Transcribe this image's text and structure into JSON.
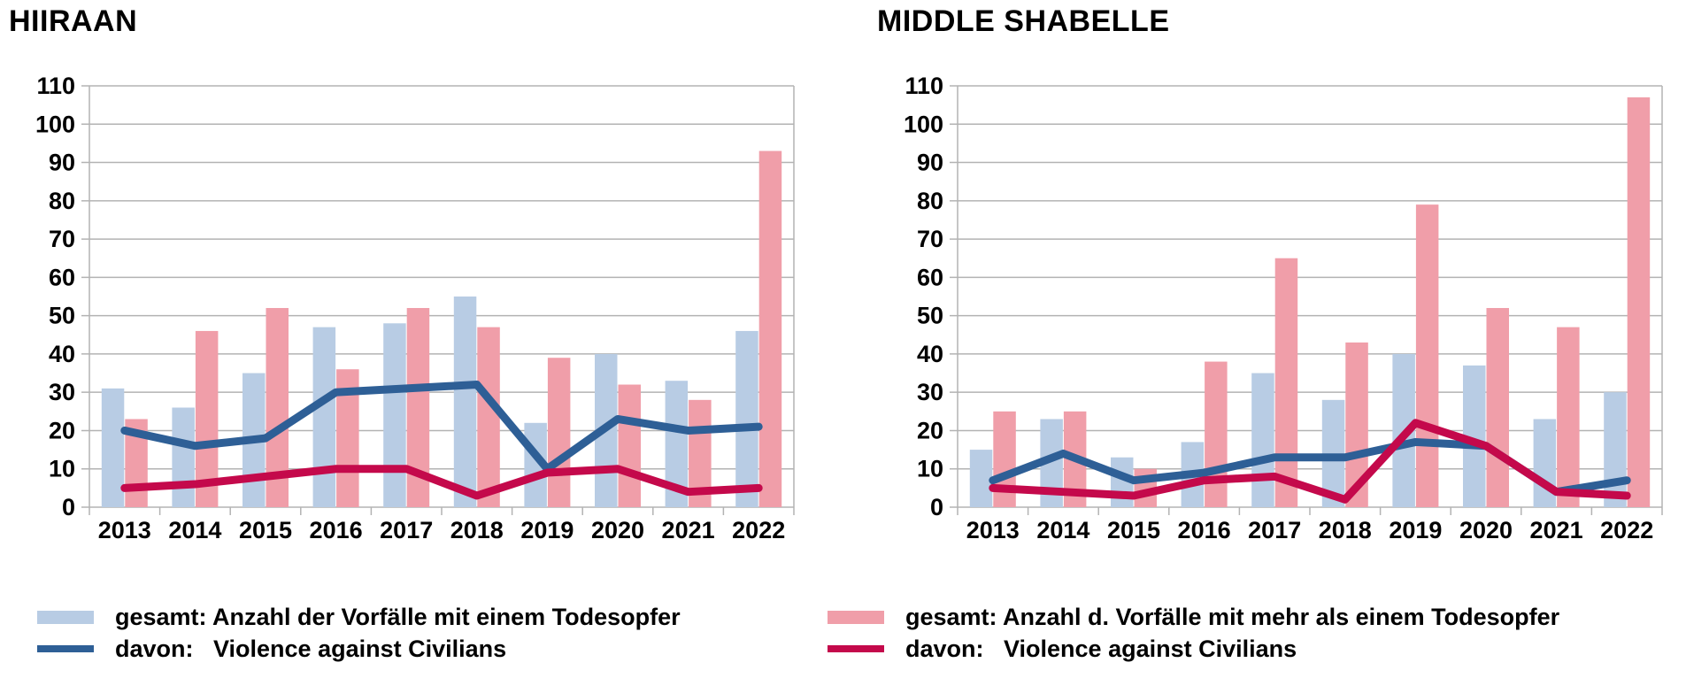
{
  "page": {
    "background": "#ffffff"
  },
  "chart_data": [
    {
      "type": "combo-bar-line",
      "title": "HIIRAAN",
      "categories": [
        "2013",
        "2014",
        "2015",
        "2016",
        "2017",
        "2018",
        "2019",
        "2020",
        "2021",
        "2022"
      ],
      "y_tick_labels": [
        "0",
        "10",
        "20",
        "30",
        "40",
        "50",
        "60",
        "70",
        "80",
        "90",
        "100",
        "110"
      ],
      "ylim": [
        0,
        110
      ],
      "grid": true,
      "legend_position": "bottom",
      "series": [
        {
          "name": "gesamt: Anzahl der Vorfälle mit einem Todesopfer",
          "render": "bar",
          "color": "#b8cce4",
          "values": [
            31,
            26,
            35,
            47,
            48,
            55,
            22,
            40,
            33,
            46
          ]
        },
        {
          "name": "gesamt: Anzahl d. Vorfälle mit mehr als einem Todesopfer",
          "render": "bar",
          "color": "#f09ea9",
          "values": [
            23,
            46,
            52,
            36,
            52,
            47,
            39,
            32,
            28,
            93
          ]
        },
        {
          "name": "davon: Violence against Civilians (Vorfälle mit einem Todesopfer)",
          "render": "line",
          "color": "#2e5f96",
          "values": [
            20,
            16,
            18,
            30,
            31,
            32,
            10,
            23,
            20,
            21
          ]
        },
        {
          "name": "davon: Violence against Civilians (Vorfälle mit mehr als einem Todesopfer)",
          "render": "line",
          "color": "#c4094b",
          "values": [
            5,
            6,
            8,
            10,
            10,
            3,
            9,
            10,
            4,
            5
          ]
        }
      ]
    },
    {
      "type": "combo-bar-line",
      "title": "MIDDLE SHABELLE",
      "categories": [
        "2013",
        "2014",
        "2015",
        "2016",
        "2017",
        "2018",
        "2019",
        "2020",
        "2021",
        "2022"
      ],
      "y_tick_labels": [
        "0",
        "10",
        "20",
        "30",
        "40",
        "50",
        "60",
        "70",
        "80",
        "90",
        "100",
        "110"
      ],
      "ylim": [
        0,
        110
      ],
      "grid": true,
      "legend_position": "bottom",
      "series": [
        {
          "name": "gesamt: Anzahl der Vorfälle mit einem Todesopfer",
          "render": "bar",
          "color": "#b8cce4",
          "values": [
            15,
            23,
            13,
            17,
            35,
            28,
            40,
            37,
            23,
            30
          ]
        },
        {
          "name": "gesamt: Anzahl d. Vorfälle mit mehr als einem Todesopfer",
          "render": "bar",
          "color": "#f09ea9",
          "values": [
            25,
            25,
            10,
            38,
            65,
            43,
            79,
            52,
            47,
            107
          ]
        },
        {
          "name": "davon: Violence against Civilians (Vorfälle mit einem Todesopfer)",
          "render": "line",
          "color": "#2e5f96",
          "values": [
            7,
            14,
            7,
            9,
            13,
            13,
            17,
            16,
            4,
            7
          ]
        },
        {
          "name": "davon: Violence against Civilians (Vorfälle mit mehr als einem Todesopfer)",
          "render": "line",
          "color": "#c4094b",
          "values": [
            5,
            4,
            3,
            7,
            8,
            2,
            22,
            16,
            4,
            3
          ]
        }
      ]
    }
  ],
  "legend": {
    "columns": [
      {
        "items": [
          {
            "swatch": "bar",
            "color": "#b8cce4",
            "label": "gesamt: Anzahl der Vorfälle mit einem Todesopfer"
          },
          {
            "swatch": "line",
            "color": "#2e5f96",
            "label": "davon:   Violence against Civilians"
          }
        ]
      },
      {
        "items": [
          {
            "swatch": "bar",
            "color": "#f09ea9",
            "label": "gesamt: Anzahl d. Vorfälle mit mehr als einem Todesopfer"
          },
          {
            "swatch": "line",
            "color": "#c4094b",
            "label": "davon:   Violence against Civilians"
          }
        ]
      }
    ]
  },
  "style": {
    "grid_color": "#b3b3b3",
    "text_color": "#000000"
  }
}
